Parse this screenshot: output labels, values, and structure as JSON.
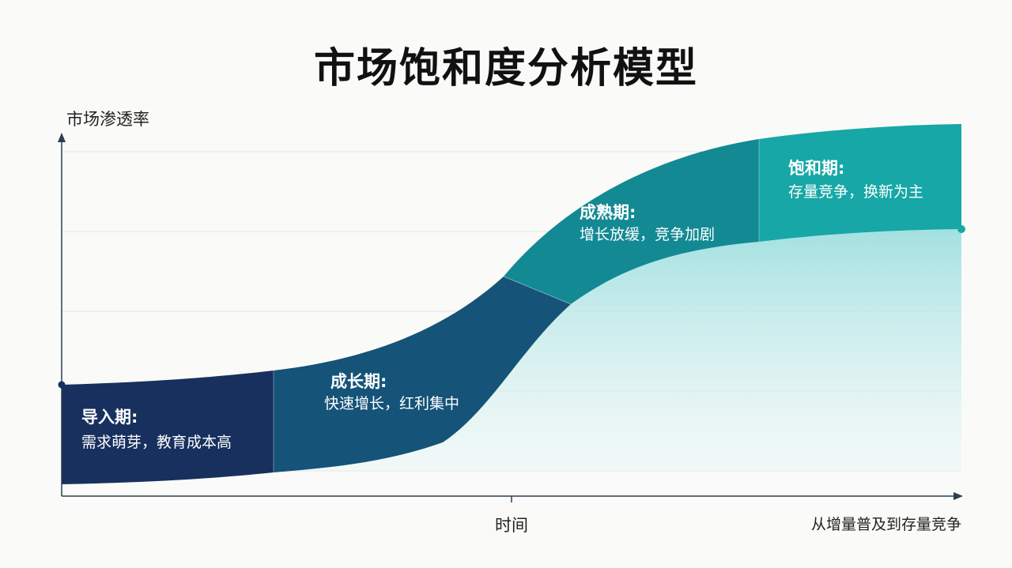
{
  "title": "市场饱和度分析模型",
  "axes": {
    "y_label": "市场渗透率",
    "x_label": "时间",
    "x_end_note": "从增量普及到存量竞争"
  },
  "stages": [
    {
      "name": "导入期:",
      "desc": "需求萌芽，教育成本高",
      "color": "#17305e"
    },
    {
      "name": "成长期:",
      "desc": "快速增长，红利集中",
      "color": "#155378"
    },
    {
      "name": "成熟期:",
      "desc": "增长放缓，竞争加剧",
      "color": "#138994"
    },
    {
      "name": "饱和期:",
      "desc": "存量竞争，换新为主",
      "color": "#17a7a6"
    }
  ],
  "colors": {
    "axis": "#2c3e50",
    "grid": "#dfe4e6",
    "area_fill": "#bfe9ea",
    "endpoint": "#17a7a6"
  }
}
